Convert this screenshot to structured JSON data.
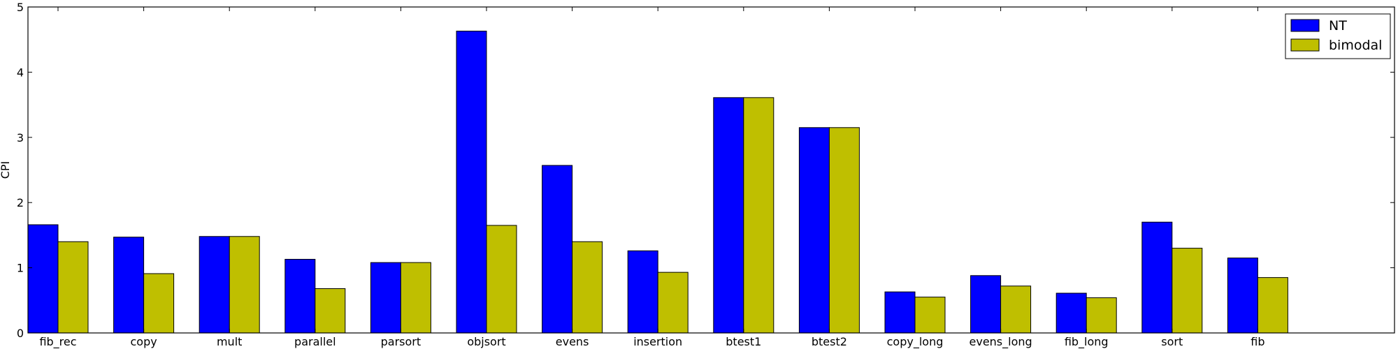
{
  "chart_data": {
    "type": "bar",
    "title": "",
    "xlabel": "",
    "ylabel": "CPI",
    "ylim": [
      0,
      5
    ],
    "yticks": [
      0,
      1,
      2,
      3,
      4,
      5
    ],
    "grid": false,
    "legend_position": "top-right",
    "categories": [
      "fib_rec",
      "copy",
      "mult",
      "parallel",
      "parsort",
      "objsort",
      "evens",
      "insertion",
      "btest1",
      "btest2",
      "copy_long",
      "evens_long",
      "fib_long",
      "sort",
      "fib"
    ],
    "series": [
      {
        "name": "NT",
        "color": "#0000ff",
        "values": [
          1.66,
          1.47,
          1.48,
          1.13,
          1.08,
          4.63,
          2.57,
          1.26,
          3.61,
          3.15,
          0.63,
          0.88,
          0.61,
          1.7,
          1.15
        ]
      },
      {
        "name": "bimodal",
        "color": "#bfbf00",
        "values": [
          1.4,
          0.91,
          1.48,
          0.68,
          1.08,
          1.65,
          1.4,
          0.93,
          3.61,
          3.15,
          0.55,
          0.72,
          0.54,
          1.3,
          0.85
        ]
      }
    ]
  }
}
